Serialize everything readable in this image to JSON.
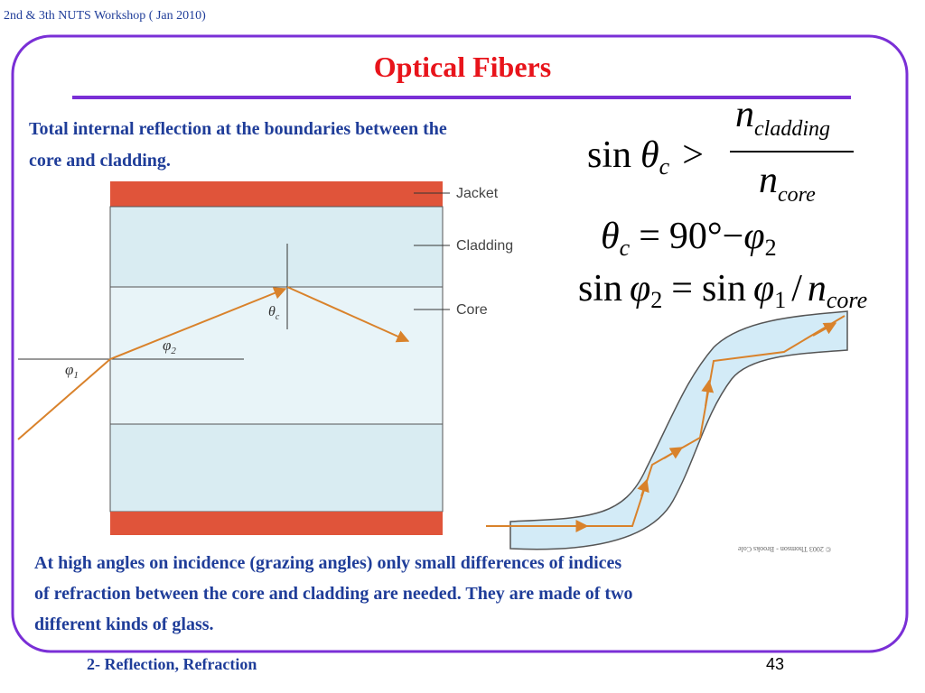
{
  "header": {
    "workshop": "2nd & 3th NUTS Workshop ( Jan 2010)"
  },
  "title": "Optical Fibers",
  "intro": [
    "Total internal reflection at the boundaries between the",
    "core and cladding."
  ],
  "diagram": {
    "labels": [
      "Jacket",
      "Cladding",
      "Core"
    ],
    "theta": "θ",
    "theta_sub": "c",
    "phi1": "φ",
    "phi1_sub": "1",
    "phi2": "φ",
    "phi2_sub": "2"
  },
  "credit": "© 2003 Thomson - Brooks Cole",
  "equations": [
    [
      "sin",
      "θ",
      "c",
      ">",
      "n",
      "cladding",
      "n",
      "core"
    ],
    [
      "θ",
      "c",
      "=",
      "90°",
      "−",
      "φ",
      "2"
    ],
    [
      "sin",
      "φ",
      "2",
      "=",
      "sin",
      "φ",
      "1",
      "/",
      "n",
      "core"
    ]
  ],
  "body": [
    "At high angles on incidence (grazing angles) only small differences of indices",
    "of refraction between the core and cladding are needed. They are made of two",
    "different kinds of glass."
  ],
  "footer": {
    "section": "2- Reflection, Refraction",
    "page": "43"
  }
}
